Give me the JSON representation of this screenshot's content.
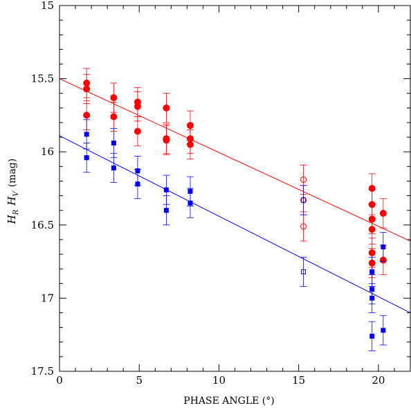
{
  "chart_data": {
    "type": "scatter",
    "xlabel": "PHASE ANGLE (°)",
    "ylabel_parts": {
      "h": "H",
      "r": "R",
      "v": "V",
      "unit": "(mag)"
    },
    "xlim": [
      0,
      22
    ],
    "ylim": [
      17.5,
      15
    ],
    "x_ticks": [
      0,
      5,
      10,
      15,
      20
    ],
    "x_tick_labels": [
      "0",
      "5",
      "10",
      "15",
      "20"
    ],
    "y_ticks": [
      15,
      15.5,
      16,
      16.5,
      17,
      17.5
    ],
    "y_tick_labels": [
      "15",
      "15.5",
      "16",
      "16.5",
      "17",
      "17.5"
    ],
    "colors": {
      "red": "#ff0000",
      "blue": "#0000ff",
      "axis": "#000000"
    },
    "series": [
      {
        "band": "R",
        "color": "#ff0000",
        "marker": "filled-circle",
        "points": [
          {
            "x": 1.7,
            "y": 15.53,
            "err": 0.1
          },
          {
            "x": 1.7,
            "y": 15.57,
            "err": 0.1
          },
          {
            "x": 1.7,
            "y": 15.75,
            "err": 0.1
          },
          {
            "x": 3.4,
            "y": 15.63,
            "err": 0.1
          },
          {
            "x": 3.4,
            "y": 15.76,
            "err": 0.1
          },
          {
            "x": 4.9,
            "y": 15.66,
            "err": 0.1
          },
          {
            "x": 4.9,
            "y": 15.69,
            "err": 0.1
          },
          {
            "x": 4.9,
            "y": 15.86,
            "err": 0.1
          },
          {
            "x": 6.7,
            "y": 15.7,
            "err": 0.1
          },
          {
            "x": 6.7,
            "y": 15.91,
            "err": 0.1
          },
          {
            "x": 6.7,
            "y": 15.92,
            "err": 0.1
          },
          {
            "x": 8.2,
            "y": 15.82,
            "err": 0.1
          },
          {
            "x": 8.2,
            "y": 15.91,
            "err": 0.1
          },
          {
            "x": 8.2,
            "y": 15.95,
            "err": 0.1
          },
          {
            "x": 19.6,
            "y": 16.25,
            "err": 0.1
          },
          {
            "x": 19.6,
            "y": 16.36,
            "err": 0.1
          },
          {
            "x": 19.6,
            "y": 16.46,
            "err": 0.1
          },
          {
            "x": 19.6,
            "y": 16.53,
            "err": 0.1
          },
          {
            "x": 19.6,
            "y": 16.69,
            "err": 0.1
          },
          {
            "x": 19.6,
            "y": 16.76,
            "err": 0.1
          },
          {
            "x": 20.3,
            "y": 16.42,
            "err": 0.1
          },
          {
            "x": 20.3,
            "y": 16.74,
            "err": 0.1
          }
        ]
      },
      {
        "band": "R",
        "color": "#ff0000",
        "marker": "open-circle",
        "points": [
          {
            "x": 15.3,
            "y": 16.19,
            "err": 0.1
          },
          {
            "x": 15.3,
            "y": 16.33,
            "err": 0.1
          },
          {
            "x": 15.3,
            "y": 16.51,
            "err": 0.1
          }
        ]
      },
      {
        "band": "V",
        "color": "#0000ff",
        "marker": "filled-square",
        "points": [
          {
            "x": 1.7,
            "y": 15.88,
            "err": 0.1
          },
          {
            "x": 1.7,
            "y": 16.04,
            "err": 0.1
          },
          {
            "x": 3.4,
            "y": 15.94,
            "err": 0.1
          },
          {
            "x": 3.4,
            "y": 16.11,
            "err": 0.1
          },
          {
            "x": 4.9,
            "y": 16.13,
            "err": 0.1
          },
          {
            "x": 4.9,
            "y": 16.22,
            "err": 0.1
          },
          {
            "x": 6.7,
            "y": 16.26,
            "err": 0.1
          },
          {
            "x": 6.7,
            "y": 16.4,
            "err": 0.1
          },
          {
            "x": 8.2,
            "y": 16.27,
            "err": 0.1
          },
          {
            "x": 8.2,
            "y": 16.35,
            "err": 0.1
          },
          {
            "x": 19.6,
            "y": 16.82,
            "err": 0.1
          },
          {
            "x": 19.6,
            "y": 16.94,
            "err": 0.1
          },
          {
            "x": 19.6,
            "y": 17.0,
            "err": 0.1
          },
          {
            "x": 19.6,
            "y": 17.26,
            "err": 0.1
          },
          {
            "x": 20.3,
            "y": 16.65,
            "err": 0.1
          },
          {
            "x": 20.3,
            "y": 17.22,
            "err": 0.1
          }
        ]
      },
      {
        "band": "V",
        "color": "#0000ff",
        "marker": "open-square",
        "points": [
          {
            "x": 15.3,
            "y": 16.33,
            "err": 0.1
          },
          {
            "x": 15.3,
            "y": 16.82,
            "err": 0.1
          }
        ]
      }
    ],
    "fit_lines": [
      {
        "band": "R",
        "color": "#ff0000",
        "x": [
          0,
          22
        ],
        "y": [
          15.5,
          16.61
        ]
      },
      {
        "band": "V",
        "color": "#0000ff",
        "x": [
          0,
          22
        ],
        "y": [
          15.89,
          17.1
        ]
      }
    ]
  }
}
